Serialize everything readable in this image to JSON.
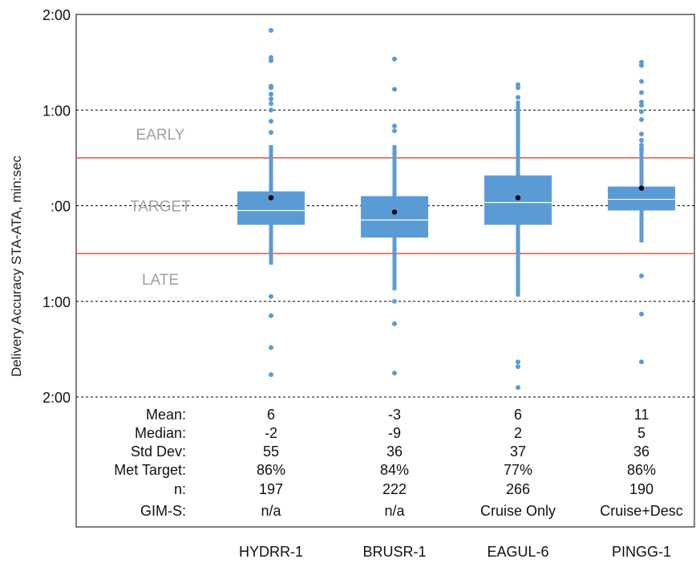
{
  "chart_data": {
    "type": "box",
    "title": "",
    "ylabel": "Delivery Accuracy STA-ATA, min:sec",
    "xlabel": "",
    "ylim_seconds": [
      -120,
      120
    ],
    "y_ticks": [
      {
        "value": 120,
        "label": "2:00"
      },
      {
        "value": 60,
        "label": "1:00"
      },
      {
        "value": 0,
        "label": ":00"
      },
      {
        "value": -60,
        "label": "1:00"
      },
      {
        "value": -120,
        "label": "2:00"
      }
    ],
    "reference_lines": [
      {
        "value": 30,
        "color": "#e8563a",
        "label": "EARLY",
        "label_value": 45
      },
      {
        "value": -30,
        "color": "#e8563a",
        "label": "LATE",
        "label_value": -46
      },
      {
        "value": 0,
        "label": "TARGET",
        "label_value": 0
      }
    ],
    "grid": "dashed at 1:00 intervals",
    "box_color": "#5b9bd5",
    "categories": [
      "HYDRR-1",
      "BRUSR-1",
      "EAGUL-6",
      "PINGG-1"
    ],
    "series": [
      {
        "name": "HYDRR-1",
        "whisker_low": -37,
        "q1": -12,
        "median": -3,
        "q3": 9,
        "whisker_high": 38,
        "mean": 5,
        "outliers": [
          110,
          93,
          91,
          75,
          74,
          70,
          67,
          64,
          60,
          53,
          46,
          -57,
          -69,
          -89,
          -106
        ]
      },
      {
        "name": "BRUSR-1",
        "whisker_low": -53,
        "q1": -20,
        "median": -9,
        "q3": 6,
        "whisker_high": 38,
        "mean": -4,
        "outliers": [
          92,
          73,
          50,
          47,
          -60,
          -74,
          -105
        ]
      },
      {
        "name": "EAGUL-6",
        "whisker_low": -57,
        "q1": -12,
        "median": 2,
        "q3": 19,
        "whisker_high": 66,
        "mean": 5,
        "outliers": [
          76,
          74,
          68,
          -98,
          -101,
          -114
        ]
      },
      {
        "name": "PINGG-1",
        "whisker_low": -23,
        "q1": -3,
        "median": 4,
        "q3": 12,
        "whisker_high": 38,
        "mean": 11,
        "outliers": [
          90,
          88,
          78,
          71,
          65,
          63,
          59,
          54,
          45,
          41,
          38,
          35,
          -44,
          -68,
          -98
        ]
      }
    ],
    "stats_labels": [
      "Mean:",
      "Median:",
      "Std Dev:",
      "Met Target:",
      "n:",
      "GIM-S:"
    ],
    "stats_table": [
      [
        "6",
        "-2",
        "55",
        "86%",
        "197",
        "n/a"
      ],
      [
        "-3",
        "-9",
        "36",
        "84%",
        "222",
        "n/a"
      ],
      [
        "6",
        "2",
        "37",
        "77%",
        "266",
        "Cruise Only"
      ],
      [
        "11",
        "5",
        "36",
        "86%",
        "190",
        "Cruise+Desc"
      ]
    ]
  }
}
